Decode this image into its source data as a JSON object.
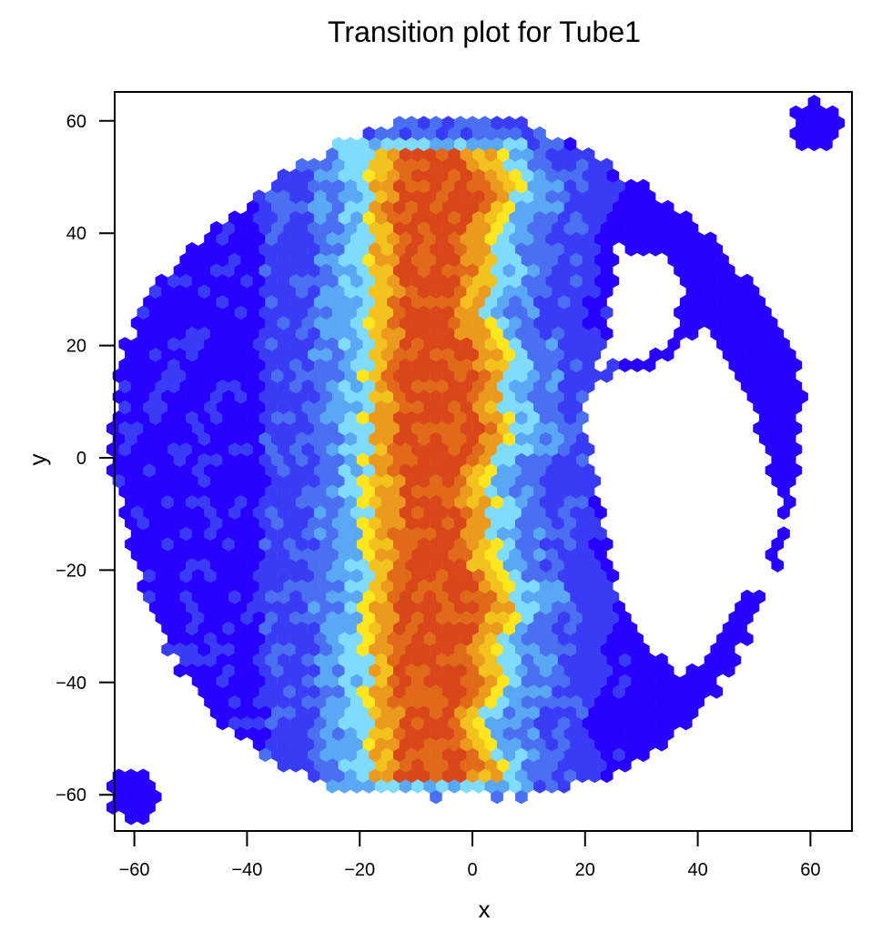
{
  "chart_data": {
    "type": "heatmap",
    "subtype": "hexbin",
    "title": "Transition plot for Tube1",
    "xlabel": "x",
    "ylabel": "y",
    "xlim": [
      -65,
      66
    ],
    "ylim": [
      -66,
      66
    ],
    "x_ticks": [
      -60,
      -40,
      -20,
      0,
      20,
      40,
      60
    ],
    "y_ticks": [
      -60,
      -40,
      -20,
      0,
      20,
      40,
      60
    ],
    "x_tick_labels": [
      "-60",
      "-40",
      "-20",
      "0",
      "20",
      "40",
      "60"
    ],
    "y_tick_labels": [
      "-60",
      "-40",
      "-20",
      "0",
      "20",
      "40",
      "60"
    ],
    "grid": false,
    "legend": null,
    "colorscale": [
      "#2800ff",
      "#3a3cf5",
      "#4a6ff0",
      "#5aa8f5",
      "#7fdcff",
      "#ffe61e",
      "#f3c21e",
      "#eb9a1e",
      "#e06a1a",
      "#d9461a"
    ],
    "description": "Hexagonal-bin density plot of a circular tube cross-section (radius ~60). A high-density vertical band (red/orange) runs from about y=-57 to y=54 centered near x=-7, flanked by yellow and light-blue transition bins, with low-density blue filling the rest of the disk. A white (empty) region exists in the right portion around x 25 to 55, y -40 to 40. Isolated blue hex clusters appear at the corners (-60,-60) and (61,59).",
    "regions": {
      "disk": {
        "cx": -3,
        "cy": -1,
        "r": 61
      },
      "core_band": {
        "x_center": -7,
        "half_width": 8,
        "y_range": [
          -57,
          54
        ],
        "level": "high"
      },
      "transition_band": {
        "half_width": 14,
        "level": "medium"
      },
      "empty_regions": [
        {
          "type": "polygon",
          "points": [
            [
              24,
              22
            ],
            [
              26,
              40
            ],
            [
              29,
              36
            ],
            [
              35,
              36
            ],
            [
              37,
              30
            ],
            [
              36,
              22
            ],
            [
              31,
              18
            ],
            [
              22,
              16
            ]
          ]
        },
        {
          "type": "polygon",
          "points": [
            [
              20,
              12
            ],
            [
              24,
              14
            ],
            [
              33,
              17
            ],
            [
              42,
              23
            ],
            [
              49,
              12
            ],
            [
              55,
              -10
            ],
            [
              52,
              -20
            ],
            [
              45,
              -30
            ],
            [
              37,
              -40
            ],
            [
              33,
              -35
            ],
            [
              28,
              -30
            ],
            [
              25,
              -20
            ],
            [
              22,
              -5
            ],
            [
              20,
              5
            ]
          ]
        }
      ],
      "right_arc_pieces": [
        {
          "cx": 28,
          "cy": 16,
          "r": 4
        },
        {
          "cx": 61,
          "cy": 59,
          "r": 4
        }
      ],
      "corner_clusters": [
        {
          "cx": -60,
          "cy": -60,
          "r": 4.5,
          "level": "low"
        },
        {
          "cx": 61,
          "cy": 59,
          "r": 4.5,
          "level": "low"
        }
      ]
    }
  },
  "plot": {
    "title": "Transition plot for Tube1",
    "xlabel": "x",
    "ylabel": "y"
  }
}
